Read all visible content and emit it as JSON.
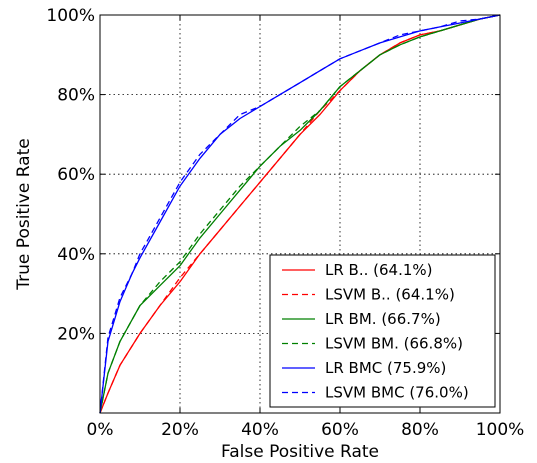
{
  "chart_data": {
    "type": "line",
    "title": "",
    "xlabel": "False Positive Rate",
    "ylabel": "True Positive Rate",
    "xlim": [
      0,
      100
    ],
    "ylim": [
      0,
      100
    ],
    "x_ticks": [
      "0%",
      "20%",
      "40%",
      "60%",
      "80%",
      "100%"
    ],
    "y_ticks": [
      "20%",
      "40%",
      "60%",
      "80%",
      "100%"
    ],
    "grid": true,
    "legend_position": "lower-right",
    "series": [
      {
        "name": "LR B.. (64.1%)",
        "color": "#ff0000",
        "dash": "solid",
        "x": [
          0,
          2,
          5,
          10,
          15,
          20,
          25,
          30,
          35,
          40,
          45,
          50,
          55,
          60,
          65,
          70,
          75,
          80,
          85,
          90,
          95,
          100
        ],
        "y": [
          0,
          5,
          12,
          20,
          27,
          33,
          40,
          46,
          52,
          58,
          64,
          70,
          75,
          81,
          86,
          90,
          93,
          95,
          96,
          97.5,
          99,
          100
        ]
      },
      {
        "name": "LSVM B.. (64.1%)",
        "color": "#ff0000",
        "dash": "dashed",
        "x": [
          0,
          2,
          5,
          10,
          15,
          20,
          25,
          30,
          35,
          40,
          45,
          50,
          55,
          60,
          65,
          70,
          75,
          80,
          85,
          90,
          95,
          100
        ],
        "y": [
          0,
          5,
          12,
          20,
          27,
          34,
          40,
          46,
          52,
          58,
          64,
          70,
          76,
          81,
          86,
          90,
          93,
          95,
          96,
          97.5,
          99,
          100
        ]
      },
      {
        "name": "LR BM. (66.7%)",
        "color": "#008000",
        "dash": "solid",
        "x": [
          0,
          2,
          5,
          10,
          15,
          20,
          25,
          30,
          35,
          40,
          45,
          50,
          55,
          60,
          65,
          70,
          75,
          80,
          85,
          90,
          95,
          100
        ],
        "y": [
          0,
          10,
          18,
          27,
          32,
          37,
          44,
          50,
          56,
          62,
          67,
          71,
          76,
          82,
          86,
          90,
          92.5,
          94.5,
          96,
          97.5,
          99,
          100
        ]
      },
      {
        "name": "LSVM BM. (66.8%)",
        "color": "#008000",
        "dash": "dashed",
        "x": [
          0,
          2,
          5,
          10,
          15,
          20,
          25,
          30,
          35,
          40,
          45,
          50,
          55,
          60,
          65,
          70,
          75,
          80,
          85,
          90,
          95,
          100
        ],
        "y": [
          0,
          10,
          18,
          27,
          33,
          38,
          45,
          51,
          57,
          62,
          67,
          72,
          76,
          82,
          86,
          90,
          92.5,
          94.5,
          96,
          97.5,
          99,
          100
        ]
      },
      {
        "name": "LR BMC (75.9%)",
        "color": "#0000ff",
        "dash": "solid",
        "x": [
          0,
          2,
          5,
          8,
          10,
          15,
          20,
          25,
          30,
          35,
          40,
          45,
          50,
          55,
          60,
          65,
          70,
          75,
          80,
          85,
          90,
          95,
          100
        ],
        "y": [
          0,
          18,
          28,
          35,
          39,
          48,
          57,
          64,
          70,
          74,
          77,
          80,
          83,
          86,
          89,
          91,
          93,
          94.5,
          96,
          97,
          98,
          99,
          100
        ]
      },
      {
        "name": "LSVM BMC (76.0%)",
        "color": "#0000ff",
        "dash": "dashed",
        "x": [
          0,
          2,
          5,
          8,
          10,
          15,
          20,
          25,
          30,
          35,
          40,
          45,
          50,
          55,
          60,
          65,
          70,
          75,
          80,
          85,
          90,
          95,
          100
        ],
        "y": [
          0,
          19,
          29,
          35,
          40,
          49,
          58,
          65,
          70,
          75,
          77,
          80,
          83,
          86,
          89,
          91,
          93,
          95,
          96,
          97,
          98.5,
          99,
          100
        ]
      }
    ]
  }
}
